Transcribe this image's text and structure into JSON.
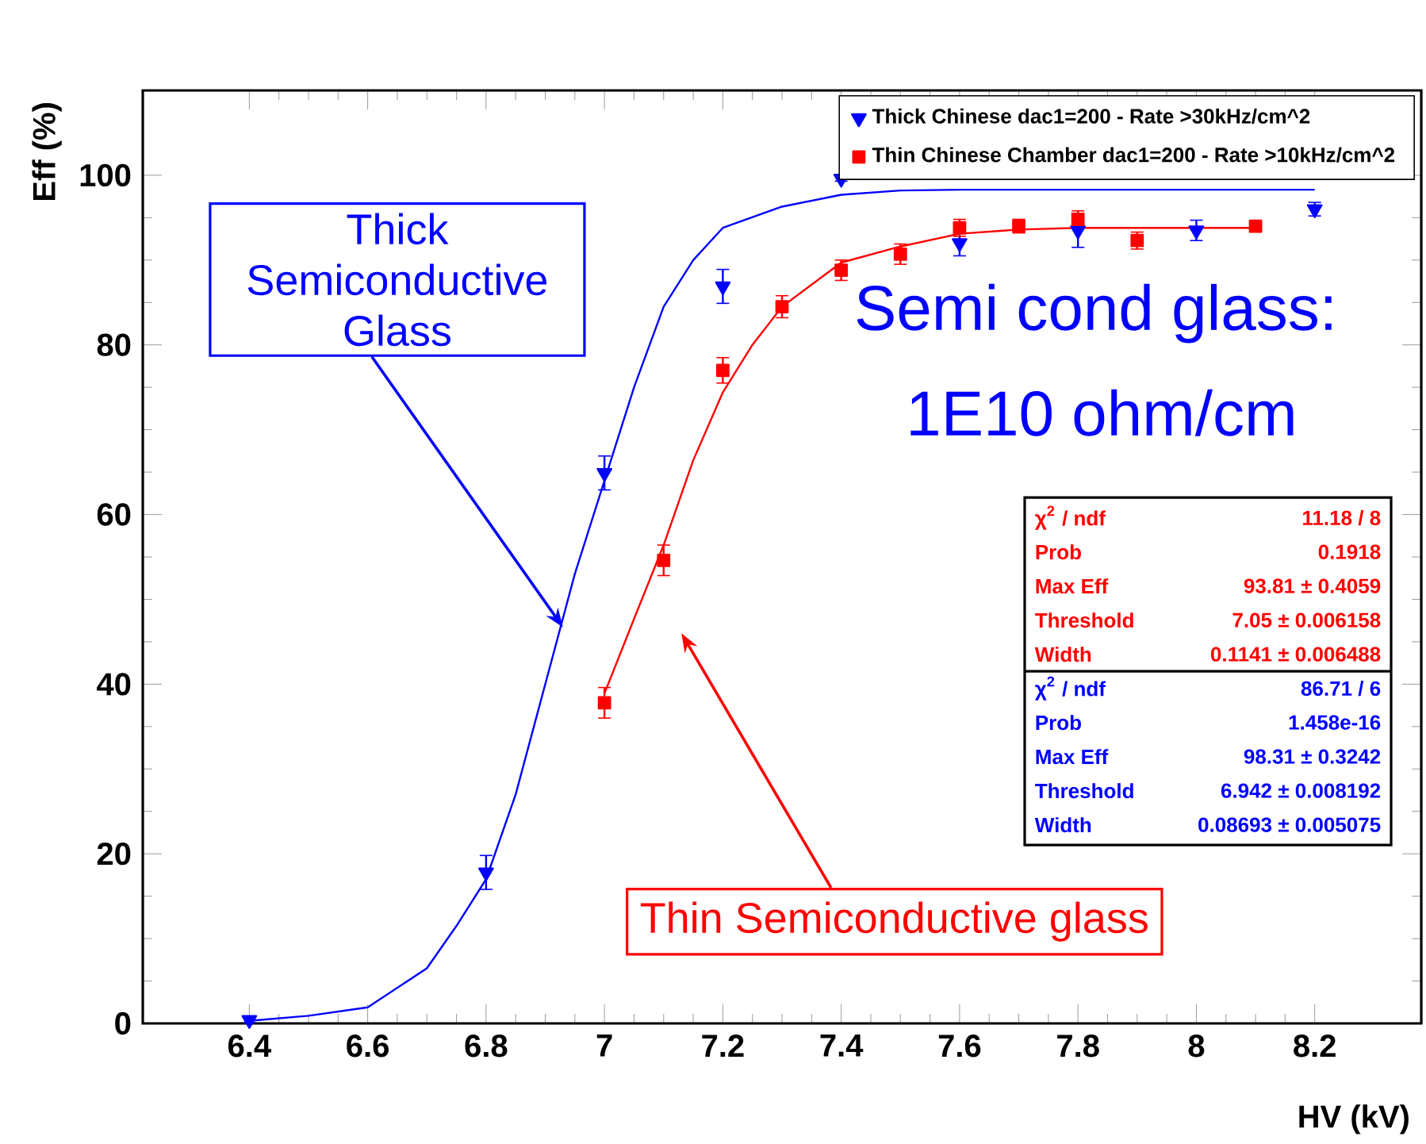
{
  "chart_data": {
    "type": "scatter",
    "xlabel": "HV (kV)",
    "ylabel": "Eff (%)",
    "xlim": [
      6.22,
      8.38
    ],
    "ylim": [
      0,
      110
    ],
    "xticks": [
      6.4,
      6.6,
      6.8,
      7,
      7.2,
      7.4,
      7.6,
      7.8,
      8,
      8.2
    ],
    "yticks": [
      0,
      20,
      40,
      60,
      80,
      100
    ],
    "grid": false,
    "legend": "top right",
    "series": [
      {
        "name": "Thick Chinese dac1=200 - Rate >30kHz/cm^2",
        "color": "#0000ff",
        "marker": "triangle",
        "x": [
          6.4,
          6.8,
          7.0,
          7.2,
          7.4,
          7.6,
          7.8,
          8.0,
          8.2
        ],
        "values": [
          0.4,
          17.8,
          64.9,
          86.9,
          99.6,
          92.0,
          93.5,
          93.5,
          96.0
        ],
        "errors": [
          0.3,
          2,
          2,
          2,
          0.3,
          1.5,
          2,
          1.2,
          0.8
        ]
      },
      {
        "name": "Thin Chinese Chamber dac1=200 - Rate >10kHz/cm^2",
        "color": "#ff0000",
        "marker": "square",
        "x": [
          7.0,
          7.1,
          7.2,
          7.3,
          7.4,
          7.5,
          7.6,
          7.7,
          7.8,
          7.9,
          8.1
        ],
        "values": [
          37.8,
          54.6,
          77.0,
          84.5,
          88.8,
          90.7,
          93.8,
          94.0,
          94.8,
          92.3,
          94.0
        ],
        "errors": [
          1.8,
          1.8,
          1.5,
          1.3,
          1.2,
          1.2,
          1.0,
          0.8,
          1.0,
          1.0,
          0.5
        ]
      },
      {
        "type": "line",
        "color": "#0000ff",
        "marker": "none",
        "x": [
          6.4,
          6.5,
          6.6,
          6.7,
          6.75,
          6.8,
          6.85,
          6.9,
          6.95,
          7.0,
          7.05,
          7.1,
          7.15,
          7.2,
          7.3,
          7.4,
          7.5,
          7.6,
          8.2
        ],
        "values": [
          0.3,
          0.9,
          1.9,
          6.5,
          11.5,
          17,
          27,
          40,
          53,
          64,
          75,
          84.5,
          90,
          93.8,
          96.3,
          97.7,
          98.2,
          98.3,
          98.3
        ]
      },
      {
        "type": "line",
        "color": "#ff0000",
        "marker": "none",
        "x": [
          7.0,
          7.05,
          7.1,
          7.15,
          7.2,
          7.25,
          7.3,
          7.4,
          7.5,
          7.6,
          7.7,
          7.8,
          8.1
        ],
        "values": [
          38.9,
          47.7,
          56.4,
          66.4,
          74.4,
          80,
          84.5,
          89.7,
          91.6,
          93.1,
          93.6,
          93.8,
          93.8
        ]
      }
    ],
    "annotations": [
      {
        "text": "Thick Semiconductive Glass",
        "x": 6.93,
        "y": 46.7
      },
      "Thin Semiconductive glass",
      "Semi cond glass:",
      "1E10 ohm/cm",
      "χ$^{2}$ / ndf",
      "11.18 / 8",
      "Prob",
      "0.1918",
      "Max Eff",
      "93.81 ± 0.4059",
      "Threshold",
      "7.05 ± 0.006158",
      "Width",
      "0.1141 ± 0.006488",
      "χ$^{2}$ / ndf",
      "86.71 / 6",
      "Prob",
      "1.458e-16",
      "Max Eff",
      "98.31 ± 0.3242",
      "Threshold",
      "6.942 ± 0.008192",
      "Width",
      "0.08693 ± 0.005075"
    ]
  }
}
